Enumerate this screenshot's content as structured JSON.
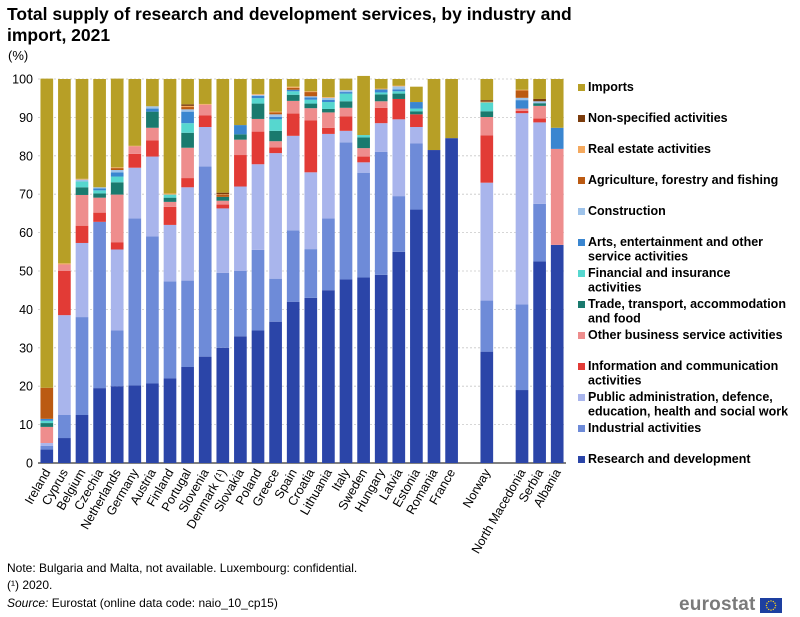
{
  "title": "Total supply of research and development services, by industry and import, 2021",
  "unit": "(%)",
  "notes": {
    "note_line": "Note: Bulgaria and Malta, not available. Luxembourg: confidential.",
    "footnote": "(¹) 2020.",
    "source_label": "Source:",
    "source_text": " Eurostat (online data code: naio_10_cp15)"
  },
  "brand": {
    "text": "eurostat"
  },
  "chart_data": {
    "type": "bar",
    "stacked": true,
    "title": "Total supply of research and development services, by industry and import, 2021",
    "ylabel": "(%)",
    "ylim": [
      0,
      100
    ],
    "yticks": [
      0,
      10,
      20,
      30,
      40,
      50,
      60,
      70,
      80,
      90,
      100
    ],
    "grid": true,
    "legend_position": "right",
    "categories": [
      "Ireland",
      "Cyprus",
      "Belgium",
      "Czechia",
      "Netherlands",
      "Germany",
      "Austria",
      "Finland",
      "Portugal",
      "Slovenia",
      "Denmark (¹)",
      "Slovakia",
      "Poland",
      "Greece",
      "Spain",
      "Croatia",
      "Lithuania",
      "Italy",
      "Sweden",
      "Hungary",
      "Latvia",
      "Estonia",
      "Romania",
      "France",
      "",
      "Norway",
      "",
      "North Macedonia",
      "Serbia",
      "Albania"
    ],
    "series": [
      {
        "name": "Research and development",
        "color": "#2b45a8",
        "values": [
          3.5,
          6.5,
          12.5,
          19.5,
          20,
          20.2,
          20.7,
          22,
          25,
          27.7,
          30,
          33,
          34.5,
          36.8,
          42,
          43,
          45,
          47.8,
          48.3,
          49,
          55,
          66,
          81.5,
          84.6,
          null,
          29,
          null,
          19,
          52.5,
          56.8
        ]
      },
      {
        "name": "Industrial activities",
        "color": "#6e8bd8",
        "values": [
          1,
          6,
          25.5,
          43.3,
          14.5,
          43.5,
          38.3,
          25.3,
          22.5,
          49.5,
          19.5,
          17,
          21,
          11.2,
          18.6,
          12.7,
          18.7,
          35.7,
          27.3,
          32,
          14.5,
          17.2,
          null,
          null,
          null,
          13.3,
          null,
          22.3,
          15,
          null
        ]
      },
      {
        "name": "Public administration, defence, education, health and social work",
        "color": "#a9b5ec",
        "values": [
          0.7,
          26,
          19.3,
          null,
          21.1,
          13.2,
          20.8,
          14.7,
          24.3,
          10.3,
          16.8,
          22,
          22.3,
          32.7,
          24.6,
          20,
          22,
          3,
          2.7,
          7.5,
          20,
          4.3,
          null,
          null,
          null,
          30.7,
          null,
          49.8,
          21.2,
          null
        ]
      },
      {
        "name": "Information and communication activities",
        "color": "#e23b36",
        "values": [
          null,
          11.5,
          4.5,
          2.4,
          1.9,
          3.6,
          4.2,
          4.7,
          2.4,
          3,
          1,
          8.2,
          8.5,
          1.5,
          5.8,
          13.5,
          1.6,
          3.8,
          1.5,
          4,
          5.3,
          3.3,
          null,
          null,
          null,
          12.3,
          null,
          0.6,
          1,
          null
        ]
      },
      {
        "name": "Other business service activities",
        "color": "#ee8d8d",
        "values": [
          4.2,
          1.7,
          8,
          3.9,
          12.4,
          2,
          3.3,
          1.3,
          7.9,
          2.8,
          1,
          4,
          3.3,
          1.6,
          3.3,
          3.2,
          4,
          2.2,
          2.2,
          1.7,
          null,
          null,
          null,
          null,
          null,
          4.8,
          null,
          0.6,
          3.3,
          25
        ]
      },
      {
        "name": "Trade, transport, accommodation and food",
        "color": "#1a7a6e",
        "values": [
          1,
          null,
          2,
          1.1,
          3.2,
          null,
          4.2,
          1.1,
          3.9,
          null,
          1,
          1.4,
          4,
          2.7,
          1.6,
          1.2,
          0.9,
          1.7,
          2.8,
          1.8,
          1.4,
          0.8,
          null,
          null,
          null,
          1.5,
          null,
          null,
          0.7,
          null
        ]
      },
      {
        "name": "Financial and insurance activities",
        "color": "#56d7cf",
        "values": [
          0.6,
          null,
          1.5,
          0.8,
          1.5,
          null,
          null,
          0.8,
          2.5,
          null,
          null,
          null,
          1.4,
          3,
          0.9,
          1,
          1.8,
          2,
          0.6,
          0.5,
          0.6,
          0.7,
          null,
          null,
          null,
          2.3,
          null,
          null,
          null,
          null
        ]
      },
      {
        "name": "Arts, entertainment and other service activities",
        "color": "#3a86d0",
        "values": [
          0.5,
          null,
          null,
          0.5,
          1.1,
          null,
          0.8,
          null,
          3,
          null,
          null,
          2.4,
          0.6,
          0.6,
          0.4,
          0.6,
          0.6,
          0.4,
          null,
          0.8,
          0.5,
          1.7,
          null,
          null,
          null,
          null,
          null,
          2.2,
          null,
          5.5
        ]
      },
      {
        "name": "Construction",
        "color": "#9ec3ea",
        "values": [
          null,
          null,
          0.5,
          0.3,
          0.6,
          null,
          0.6,
          null,
          0.6,
          null,
          null,
          null,
          0.3,
          0.7,
          null,
          0.3,
          0.5,
          0.5,
          null,
          null,
          0.8,
          null,
          null,
          null,
          null,
          null,
          null,
          0.6,
          0.5,
          null
        ]
      },
      {
        "name": "Agriculture, forestry and fishing",
        "color": "#bb5a12",
        "values": [
          8.1,
          null,
          null,
          null,
          0.5,
          null,
          null,
          null,
          0.6,
          null,
          0.6,
          null,
          null,
          0.5,
          0.5,
          1.1,
          null,
          null,
          null,
          null,
          null,
          null,
          null,
          null,
          null,
          null,
          null,
          1.9,
          null,
          null
        ]
      },
      {
        "name": "Real estate activities",
        "color": "#f4a95e",
        "values": [
          null,
          0.3,
          0.2,
          null,
          0.2,
          0.1,
          null,
          0.3,
          0.3,
          0.2,
          0.1,
          null,
          0.2,
          0.2,
          0.3,
          0.2,
          0.2,
          null,
          null,
          0.2,
          0.2,
          null,
          null,
          null,
          null,
          0.2,
          null,
          0.2,
          null,
          null
        ]
      },
      {
        "name": "Non-specified activities",
        "color": "#7b3c0d",
        "values": [
          null,
          null,
          null,
          null,
          null,
          null,
          null,
          null,
          0.4,
          null,
          0.4,
          null,
          null,
          null,
          null,
          null,
          null,
          null,
          null,
          null,
          null,
          null,
          null,
          null,
          null,
          0.4,
          null,
          null,
          0.6,
          null
        ]
      },
      {
        "name": "Imports",
        "color": "#b79f26",
        "values": [
          80.5,
          48,
          26,
          28.2,
          23.1,
          17.4,
          7.1,
          29.8,
          6.6,
          6.5,
          29.6,
          12,
          3.9,
          8.5,
          2,
          3.2,
          4.7,
          3,
          15.4,
          2.5,
          1.7,
          4,
          18.5,
          15.4,
          null,
          5.5,
          null,
          2.8,
          5.2,
          12.7
        ]
      }
    ]
  }
}
